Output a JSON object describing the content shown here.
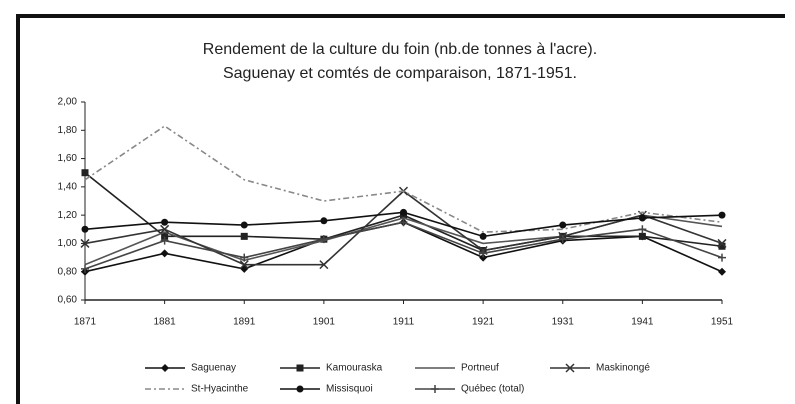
{
  "chart_data": {
    "type": "line",
    "title": [
      "Rendement de la culture du foin (nb.de tonnes à l'acre).",
      "Saguenay et comtés de comparaison, 1871-1951."
    ],
    "categories": [
      "1871",
      "1881",
      "1891",
      "1901",
      "1911",
      "1921",
      "1931",
      "1941",
      "1951"
    ],
    "ylim": [
      0.6,
      2.0
    ],
    "yticks": [
      {
        "value": 0.6,
        "label": "0,60"
      },
      {
        "value": 0.8,
        "label": "0,80"
      },
      {
        "value": 1.0,
        "label": "1,00"
      },
      {
        "value": 1.2,
        "label": "1,20"
      },
      {
        "value": 1.4,
        "label": "1,40"
      },
      {
        "value": 1.6,
        "label": "1,60"
      },
      {
        "value": 1.8,
        "label": "1,80"
      },
      {
        "value": 2.0,
        "label": "2,00"
      }
    ],
    "series": [
      {
        "name": "Saguenay",
        "color": "#111111",
        "marker": "diamond",
        "dash": "none",
        "values": [
          0.8,
          0.93,
          0.82,
          1.03,
          1.15,
          0.9,
          1.02,
          1.05,
          0.8
        ]
      },
      {
        "name": "Kamouraska",
        "color": "#222222",
        "marker": "square",
        "dash": "none",
        "values": [
          1.5,
          1.05,
          1.05,
          1.03,
          1.2,
          0.95,
          1.05,
          1.05,
          0.98
        ]
      },
      {
        "name": "Portneuf",
        "color": "#555555",
        "marker": "none",
        "dash": "none",
        "values": [
          0.85,
          1.08,
          0.88,
          1.02,
          1.18,
          1.0,
          1.05,
          1.2,
          1.12
        ]
      },
      {
        "name": "Maskinongé",
        "color": "#333333",
        "marker": "x",
        "dash": "none",
        "values": [
          1.0,
          1.1,
          0.85,
          0.85,
          1.37,
          0.95,
          1.05,
          1.2,
          1.0
        ]
      },
      {
        "name": "St-Hyacinthe",
        "color": "#888888",
        "marker": "none",
        "dash": "6 3 2 3",
        "values": [
          1.45,
          1.83,
          1.45,
          1.3,
          1.37,
          1.08,
          1.1,
          1.22,
          1.15
        ]
      },
      {
        "name": "Missisquoi",
        "color": "#111111",
        "marker": "circle",
        "dash": "none",
        "values": [
          1.1,
          1.15,
          1.13,
          1.16,
          1.22,
          1.05,
          1.13,
          1.18,
          1.2
        ]
      },
      {
        "name": "Québec (total)",
        "color": "#444444",
        "marker": "plus",
        "dash": "none",
        "values": [
          0.82,
          1.02,
          0.9,
          1.03,
          1.15,
          0.93,
          1.03,
          1.1,
          0.9
        ]
      }
    ]
  }
}
